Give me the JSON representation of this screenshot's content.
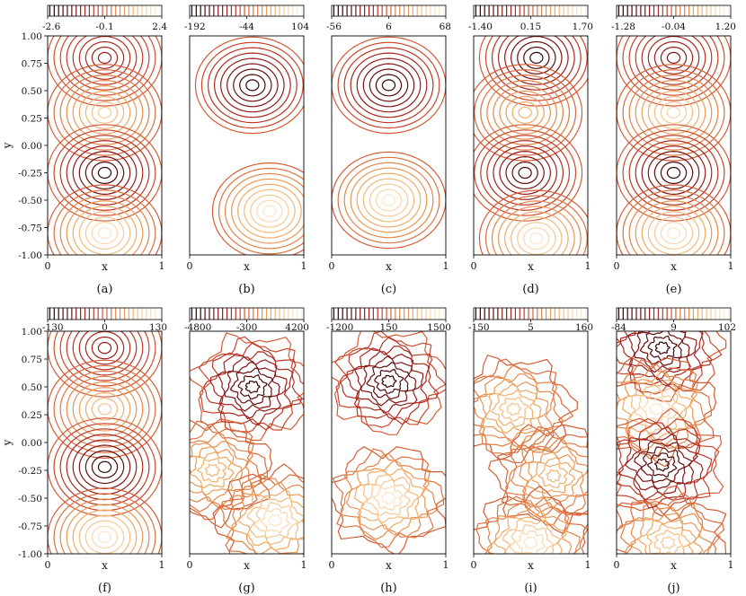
{
  "figure": {
    "colormap": [
      "#1a0000",
      "#5a0b0b",
      "#9a1c1a",
      "#c8402a",
      "#e07840",
      "#f0a860",
      "#f8d0a0",
      "#fff4e6"
    ],
    "axis_color": "#000000"
  },
  "chart_data": [
    {
      "type": "heatmap",
      "panel_label": "(a)",
      "xlabel": "x",
      "ylabel": "y",
      "colorbar_ticks": [
        "-2.6",
        "-0.1",
        "2.4"
      ],
      "vmin": -2.6,
      "vmax": 2.4,
      "xlim": [
        0,
        1
      ],
      "ylim": [
        -1,
        1
      ],
      "x_ticks": [
        "0",
        "1"
      ],
      "y_ticks": [
        "1.00",
        "0.75",
        "0.50",
        "0.25",
        "0.00",
        "-0.25",
        "-0.50",
        "-0.75",
        "-1.00"
      ],
      "extrema": [
        {
          "x": 0.5,
          "y": 0.8,
          "value": -1.3
        },
        {
          "x": 0.5,
          "y": 0.3,
          "value": 1.8
        },
        {
          "x": 0.5,
          "y": -0.25,
          "value": -2.6
        },
        {
          "x": 0.5,
          "y": -0.8,
          "value": 2.4
        }
      ]
    },
    {
      "type": "heatmap",
      "panel_label": "(b)",
      "xlabel": "x",
      "ylabel": "",
      "colorbar_ticks": [
        "-192",
        "-44",
        "104"
      ],
      "vmin": -192,
      "vmax": 104,
      "xlim": [
        0,
        1
      ],
      "ylim": [
        -1,
        1
      ],
      "x_ticks": [
        "0",
        "1"
      ],
      "y_ticks": [],
      "extrema": [
        {
          "x": 0.55,
          "y": 0.55,
          "value": -192
        },
        {
          "x": 0.7,
          "y": -0.6,
          "value": 104
        }
      ]
    },
    {
      "type": "heatmap",
      "panel_label": "(c)",
      "xlabel": "x",
      "ylabel": "",
      "colorbar_ticks": [
        "-56",
        "6",
        "68"
      ],
      "vmin": -56,
      "vmax": 68,
      "xlim": [
        0,
        1
      ],
      "ylim": [
        -1,
        1
      ],
      "x_ticks": [
        "0",
        "1"
      ],
      "y_ticks": [],
      "extrema": [
        {
          "x": 0.5,
          "y": 0.55,
          "value": -56
        },
        {
          "x": 0.5,
          "y": -0.5,
          "value": 68
        }
      ]
    },
    {
      "type": "heatmap",
      "panel_label": "(d)",
      "xlabel": "x",
      "ylabel": "",
      "colorbar_ticks": [
        "-1.40",
        "0.15",
        "1.70"
      ],
      "vmin": -1.4,
      "vmax": 1.7,
      "xlim": [
        0,
        1
      ],
      "ylim": [
        -1,
        1
      ],
      "x_ticks": [
        "0",
        "1"
      ],
      "y_ticks": [],
      "extrema": [
        {
          "x": 0.55,
          "y": 0.8,
          "value": -1.4
        },
        {
          "x": 0.45,
          "y": 0.3,
          "value": 1.0
        },
        {
          "x": 0.45,
          "y": -0.25,
          "value": -1.2
        },
        {
          "x": 0.55,
          "y": -0.85,
          "value": 1.7
        }
      ]
    },
    {
      "type": "heatmap",
      "panel_label": "(e)",
      "xlabel": "x",
      "ylabel": "",
      "colorbar_ticks": [
        "-1.28",
        "-0.04",
        "1.20"
      ],
      "vmin": -1.28,
      "vmax": 1.2,
      "xlim": [
        0,
        1
      ],
      "ylim": [
        -1,
        1
      ],
      "x_ticks": [
        "0",
        "1"
      ],
      "y_ticks": [],
      "extrema": [
        {
          "x": 0.5,
          "y": 0.8,
          "value": -0.8
        },
        {
          "x": 0.5,
          "y": 0.3,
          "value": 1.0
        },
        {
          "x": 0.5,
          "y": -0.25,
          "value": -1.28
        },
        {
          "x": 0.5,
          "y": -0.8,
          "value": 1.2
        }
      ]
    },
    {
      "type": "heatmap",
      "panel_label": "(f)",
      "xlabel": "x",
      "ylabel": "y",
      "colorbar_ticks": [
        "-130",
        "0",
        "130"
      ],
      "vmin": -130,
      "vmax": 130,
      "xlim": [
        0,
        1
      ],
      "ylim": [
        -1,
        1
      ],
      "x_ticks": [
        "0",
        "1"
      ],
      "y_ticks": [
        "1.00",
        "0.75",
        "0.50",
        "0.25",
        "0.00",
        "-0.25",
        "-0.50",
        "-0.75",
        "-1.00"
      ],
      "extrema": [
        {
          "x": 0.5,
          "y": 0.85,
          "value": -70
        },
        {
          "x": 0.5,
          "y": 0.3,
          "value": 90
        },
        {
          "x": 0.5,
          "y": -0.22,
          "value": -130
        },
        {
          "x": 0.5,
          "y": -0.85,
          "value": 130
        }
      ]
    },
    {
      "type": "heatmap",
      "panel_label": "(g)",
      "xlabel": "x",
      "ylabel": "",
      "colorbar_ticks": [
        "-4800",
        "-300",
        "4200"
      ],
      "vmin": -4800,
      "vmax": 4200,
      "xlim": [
        0,
        1
      ],
      "ylim": [
        -1,
        1
      ],
      "x_ticks": [
        "0",
        "1"
      ],
      "y_ticks": [],
      "extrema": [
        {
          "x": 0.55,
          "y": 0.5,
          "value": -4800
        },
        {
          "x": 0.2,
          "y": -0.25,
          "value": 2500
        },
        {
          "x": 0.75,
          "y": -0.7,
          "value": 4200
        }
      ]
    },
    {
      "type": "heatmap",
      "panel_label": "(h)",
      "xlabel": "x",
      "ylabel": "",
      "colorbar_ticks": [
        "-1200",
        "150",
        "1500"
      ],
      "vmin": -1200,
      "vmax": 1500,
      "xlim": [
        0,
        1
      ],
      "ylim": [
        -1,
        1
      ],
      "x_ticks": [
        "0",
        "1"
      ],
      "y_ticks": [],
      "extrema": [
        {
          "x": 0.5,
          "y": 0.55,
          "value": -1200
        },
        {
          "x": 0.5,
          "y": -0.5,
          "value": 1500
        }
      ]
    },
    {
      "type": "heatmap",
      "panel_label": "(i)",
      "xlabel": "x",
      "ylabel": "",
      "colorbar_ticks": [
        "-150",
        "5",
        "160"
      ],
      "vmin": -150,
      "vmax": 160,
      "xlim": [
        0,
        1
      ],
      "ylim": [
        -1,
        1
      ],
      "x_ticks": [
        "0",
        "1"
      ],
      "y_ticks": [],
      "extrema": [
        {
          "x": 0.35,
          "y": 0.3,
          "value": 120
        },
        {
          "x": 0.7,
          "y": -0.3,
          "value": 100
        },
        {
          "x": 0.5,
          "y": -0.9,
          "value": 160
        }
      ]
    },
    {
      "type": "heatmap",
      "panel_label": "(j)",
      "xlabel": "x",
      "ylabel": "",
      "colorbar_ticks": [
        "-84",
        "9",
        "102"
      ],
      "vmin": -84,
      "vmax": 102,
      "xlim": [
        0,
        1
      ],
      "ylim": [
        -1,
        1
      ],
      "x_ticks": [
        "0",
        "1"
      ],
      "y_ticks": [],
      "extrema": [
        {
          "x": 0.4,
          "y": 0.85,
          "value": -84
        },
        {
          "x": 0.35,
          "y": 0.3,
          "value": 102
        },
        {
          "x": 0.4,
          "y": -0.2,
          "value": -84
        },
        {
          "x": 0.45,
          "y": -0.9,
          "value": 80
        }
      ]
    }
  ]
}
